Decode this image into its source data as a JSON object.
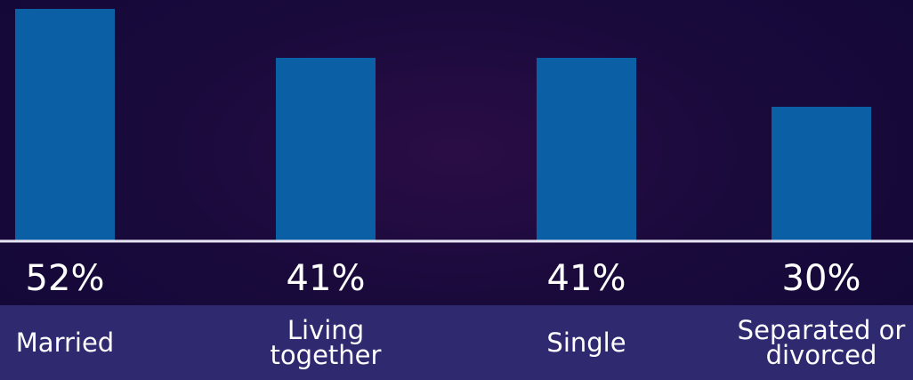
{
  "chart_data": {
    "type": "bar",
    "categories": [
      "Married",
      "Living together",
      "Single",
      "Separated or divorced"
    ],
    "values": [
      52,
      41,
      41,
      30
    ],
    "value_labels": [
      "52%",
      "41%",
      "41%",
      "30%"
    ],
    "color": "#0b5fa5",
    "ylim": [
      0,
      54
    ]
  }
}
